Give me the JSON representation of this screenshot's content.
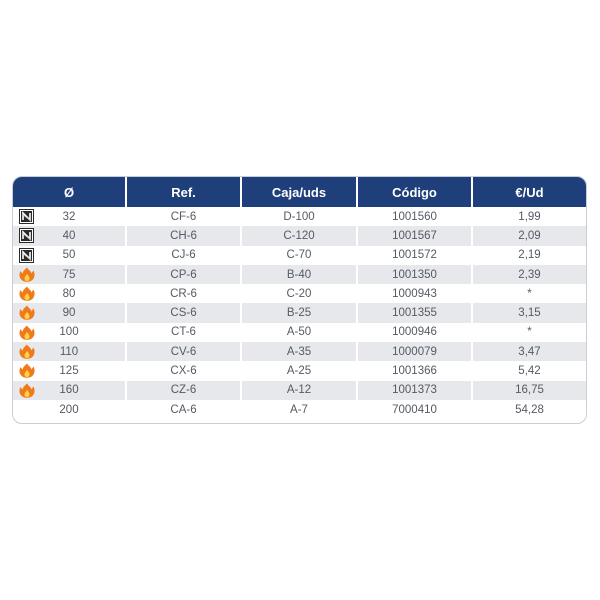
{
  "headers": {
    "diameter": "Ø",
    "ref": "Ref.",
    "caja": "Caja/uds",
    "codigo": "Código",
    "precio": "€/Ud"
  },
  "rows": [
    {
      "icon": "non-flammable-icon",
      "diameter": "32",
      "ref": "CF-6",
      "caja": "D-100",
      "codigo": "1001560",
      "precio": "1,99"
    },
    {
      "icon": "non-flammable-icon",
      "diameter": "40",
      "ref": "CH-6",
      "caja": "C-120",
      "codigo": "1001567",
      "precio": "2,09"
    },
    {
      "icon": "non-flammable-icon",
      "diameter": "50",
      "ref": "CJ-6",
      "caja": "C-70",
      "codigo": "1001572",
      "precio": "2,19"
    },
    {
      "icon": "fire-icon",
      "diameter": "75",
      "ref": "CP-6",
      "caja": "B-40",
      "codigo": "1001350",
      "precio": "2,39"
    },
    {
      "icon": "fire-icon",
      "diameter": "80",
      "ref": "CR-6",
      "caja": "C-20",
      "codigo": "1000943",
      "precio": "*"
    },
    {
      "icon": "fire-icon",
      "diameter": "90",
      "ref": "CS-6",
      "caja": "B-25",
      "codigo": "1001355",
      "precio": "3,15"
    },
    {
      "icon": "fire-icon",
      "diameter": "100",
      "ref": "CT-6",
      "caja": "A-50",
      "codigo": "1000946",
      "precio": "*"
    },
    {
      "icon": "fire-icon",
      "diameter": "110",
      "ref": "CV-6",
      "caja": "A-35",
      "codigo": "1000079",
      "precio": "3,47"
    },
    {
      "icon": "fire-icon",
      "diameter": "125",
      "ref": "CX-6",
      "caja": "A-25",
      "codigo": "1001366",
      "precio": "5,42"
    },
    {
      "icon": "fire-icon",
      "diameter": "160",
      "ref": "CZ-6",
      "caja": "A-12",
      "codigo": "1001373",
      "precio": "16,75"
    },
    {
      "icon": "",
      "diameter": "200",
      "ref": "CA-6",
      "caja": "A-7",
      "codigo": "7000410",
      "precio": "54,28"
    }
  ],
  "colors": {
    "header_bg": "#1f3f7a",
    "stripe": "#e6e8ec",
    "fire": "#f07a1a"
  }
}
